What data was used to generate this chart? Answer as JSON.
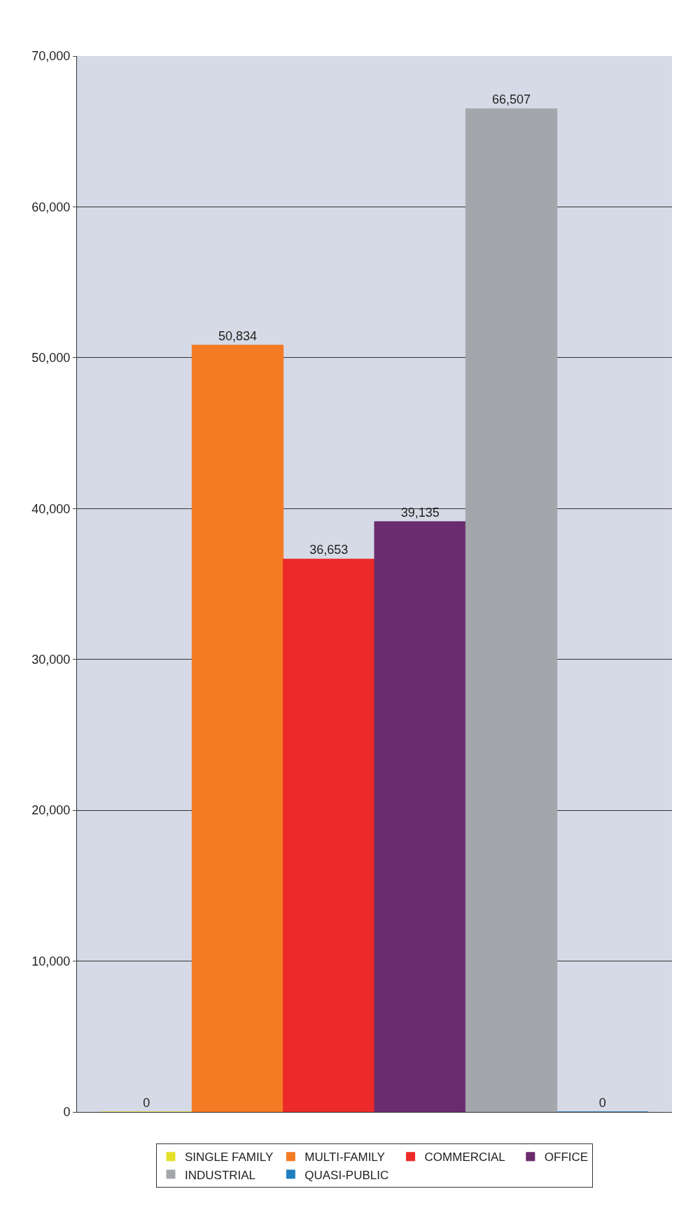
{
  "chart_data": {
    "type": "bar",
    "categories": [
      null
    ],
    "series": [
      {
        "name": "SINGLE FAMILY",
        "color": "#e4e02a",
        "values": [
          0
        ],
        "value_labels": [
          "0"
        ]
      },
      {
        "name": "MULTI-FAMILY",
        "color": "#f47a24",
        "values": [
          50834
        ],
        "value_labels": [
          "50,834"
        ]
      },
      {
        "name": "COMMERCIAL",
        "color": "#ec2a2a",
        "values": [
          36653
        ],
        "value_labels": [
          "36,653"
        ]
      },
      {
        "name": "OFFICE",
        "color": "#6a2c6e",
        "values": [
          39135
        ],
        "value_labels": [
          "39,135"
        ]
      },
      {
        "name": "INDUSTRIAL",
        "color": "#a3a7ab",
        "values": [
          66507
        ],
        "value_labels": [
          "66,507"
        ]
      },
      {
        "name": "QUASI-PUBLIC",
        "color": "#1f7fc0",
        "values": [
          0
        ],
        "value_labels": [
          "0"
        ]
      }
    ],
    "ylim": [
      0,
      70000
    ],
    "yticks": [
      0,
      {
        "value": 10000,
        "label": "10,000"
      },
      {
        "value": 20000,
        "label": "20,000"
      },
      {
        "value": 30000,
        "label": "30,000"
      },
      {
        "value": 40000,
        "label": "40,000"
      },
      {
        "value": 50000,
        "label": "50,000"
      },
      {
        "value": 60000,
        "label": "60,000"
      },
      {
        "value": 70000,
        "label": "70,000"
      }
    ],
    "grid": "y",
    "legend": "bottom",
    "tick_labels": "y"
  }
}
